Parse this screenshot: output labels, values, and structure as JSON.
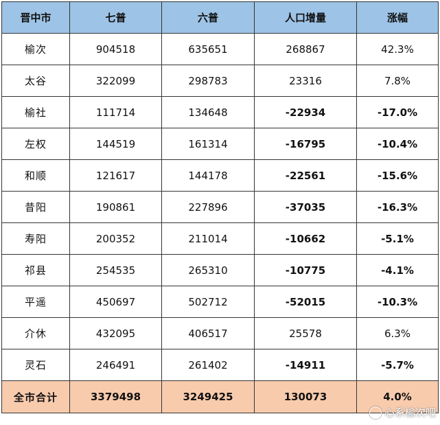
{
  "table": {
    "headers": [
      "晋中市",
      "七普",
      "六普",
      "人口增量",
      "涨幅"
    ],
    "rows": [
      {
        "name": "榆次",
        "census7": "904518",
        "census6": "635651",
        "increase": "268867",
        "growth": "42.3%",
        "negative": false
      },
      {
        "name": "太谷",
        "census7": "322099",
        "census6": "298783",
        "increase": "23316",
        "growth": "7.8%",
        "negative": false
      },
      {
        "name": "榆社",
        "census7": "111714",
        "census6": "134648",
        "increase": "-22934",
        "growth": "-17.0%",
        "negative": true
      },
      {
        "name": "左权",
        "census7": "144519",
        "census6": "161314",
        "increase": "-16795",
        "growth": "-10.4%",
        "negative": true
      },
      {
        "name": "和顺",
        "census7": "121617",
        "census6": "144178",
        "increase": "-22561",
        "growth": "-15.6%",
        "negative": true
      },
      {
        "name": "昔阳",
        "census7": "190861",
        "census6": "227896",
        "increase": "-37035",
        "growth": "-16.3%",
        "negative": true
      },
      {
        "name": "寿阳",
        "census7": "200352",
        "census6": "211014",
        "increase": "-10662",
        "growth": "-5.1%",
        "negative": true
      },
      {
        "name": "祁县",
        "census7": "254535",
        "census6": "265310",
        "increase": "-10775",
        "growth": "-4.1%",
        "negative": true
      },
      {
        "name": "平遥",
        "census7": "450697",
        "census6": "502712",
        "increase": "-52015",
        "growth": "-10.3%",
        "negative": true
      },
      {
        "name": "介休",
        "census7": "432095",
        "census6": "406517",
        "increase": "25578",
        "growth": "6.3%",
        "negative": false
      },
      {
        "name": "灵石",
        "census7": "246491",
        "census6": "261402",
        "increase": "-14911",
        "growth": "-5.7%",
        "negative": true
      }
    ],
    "total": {
      "name": "全市合计",
      "census7": "3379498",
      "census6": "3249425",
      "increase": "130073",
      "growth": "4.0%"
    }
  },
  "watermark": {
    "text": "心系榆次吧",
    "icon": "chat-bubble-icon"
  },
  "colors": {
    "header_bg": "#9dc3e6",
    "total_bg": "#f8cbad",
    "negative_text": "#e0302a",
    "border": "#333333"
  }
}
